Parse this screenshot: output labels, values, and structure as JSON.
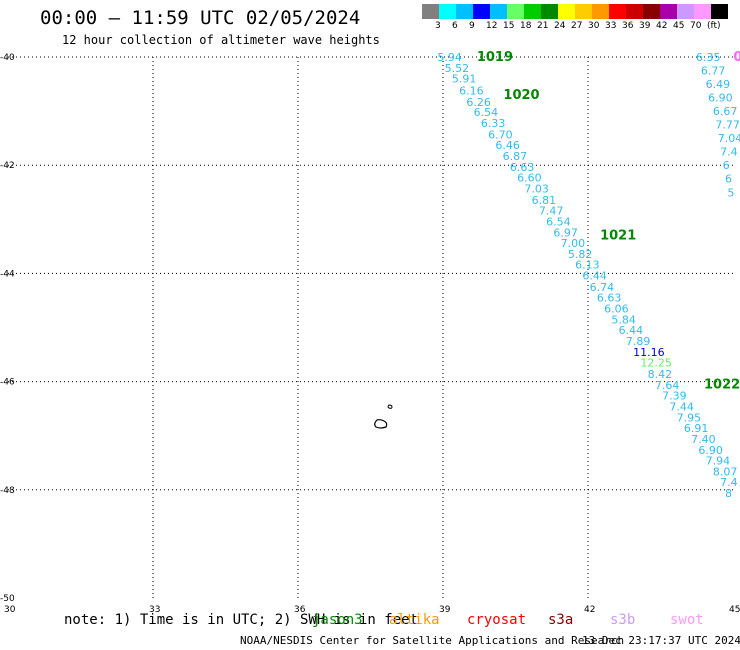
{
  "header": {
    "title": "00:00 – 11:59 UTC 02/05/2024",
    "subtitle": "12 hour collection of altimeter wave heights"
  },
  "color_scale": {
    "swatches": [
      "#808080",
      "#00ffff",
      "#00bfff",
      "#0000ff",
      "#00bfff",
      "#66ff66",
      "#00cc00",
      "#008800",
      "#ffff00",
      "#ffcc00",
      "#ff9900",
      "#ff0000",
      "#cc0000",
      "#880000",
      "#aa00aa",
      "#cc99ff",
      "#ff99ff",
      "#000000"
    ],
    "labels": [
      "3",
      "6",
      "9",
      "12",
      "15",
      "18",
      "21",
      "24",
      "27",
      "30",
      "33",
      "36",
      "39",
      "42",
      "45",
      "70",
      "(ft)"
    ]
  },
  "axes": {
    "y_ticks": [
      "-40",
      "-42",
      "-44",
      "-46",
      "-48",
      "-50"
    ],
    "x_ticks": [
      "30",
      "33",
      "36",
      "39",
      "42",
      "45"
    ],
    "lat_range": [
      -50,
      -40
    ],
    "lon_range": [
      30,
      45
    ]
  },
  "track_a": {
    "color": "#33bbee",
    "points": [
      {
        "lon": 39.05,
        "lat": -40.0,
        "v": "5.94"
      },
      {
        "lon": 39.2,
        "lat": -40.2,
        "v": "5.52"
      },
      {
        "lon": 39.35,
        "lat": -40.4,
        "v": "5.91"
      },
      {
        "lon": 39.5,
        "lat": -40.62,
        "v": "6.16"
      },
      {
        "lon": 39.65,
        "lat": -40.83,
        "v": "6.26"
      },
      {
        "lon": 39.8,
        "lat": -41.02,
        "v": "6.54"
      },
      {
        "lon": 39.95,
        "lat": -41.22,
        "v": "6.33"
      },
      {
        "lon": 40.1,
        "lat": -41.43,
        "v": "6.70"
      },
      {
        "lon": 40.25,
        "lat": -41.63,
        "v": "6.46"
      },
      {
        "lon": 40.4,
        "lat": -41.83,
        "v": "6.87"
      },
      {
        "lon": 40.55,
        "lat": -42.03,
        "v": "6.63"
      },
      {
        "lon": 40.7,
        "lat": -42.23,
        "v": "6.60"
      },
      {
        "lon": 40.85,
        "lat": -42.43,
        "v": "7.03"
      },
      {
        "lon": 41.0,
        "lat": -42.64,
        "v": "6.81"
      },
      {
        "lon": 41.15,
        "lat": -42.84,
        "v": "7.47"
      },
      {
        "lon": 41.3,
        "lat": -43.04,
        "v": "6.54"
      },
      {
        "lon": 41.45,
        "lat": -43.24,
        "v": "6.97"
      },
      {
        "lon": 41.6,
        "lat": -43.44,
        "v": "7.00"
      },
      {
        "lon": 41.75,
        "lat": -43.64,
        "v": "5.82"
      },
      {
        "lon": 41.9,
        "lat": -43.84,
        "v": "6.13"
      },
      {
        "lon": 42.05,
        "lat": -44.04,
        "v": "6.44"
      },
      {
        "lon": 42.2,
        "lat": -44.25,
        "v": "6.74"
      },
      {
        "lon": 42.35,
        "lat": -44.45,
        "v": "6.63"
      },
      {
        "lon": 42.5,
        "lat": -44.65,
        "v": "6.06"
      },
      {
        "lon": 42.65,
        "lat": -44.85,
        "v": "5.84"
      },
      {
        "lon": 42.8,
        "lat": -45.05,
        "v": "6.44"
      },
      {
        "lon": 42.95,
        "lat": -45.25,
        "v": "7.89"
      },
      {
        "lon": 43.1,
        "lat": -45.45,
        "v": "11.16",
        "color": "#0000cc"
      },
      {
        "lon": 43.25,
        "lat": -45.65,
        "v": "12.25",
        "color": "#66ee66"
      },
      {
        "lon": 43.4,
        "lat": -45.86,
        "v": "8.42"
      },
      {
        "lon": 43.55,
        "lat": -46.06,
        "v": "7.64"
      },
      {
        "lon": 43.7,
        "lat": -46.26,
        "v": "7.39"
      },
      {
        "lon": 43.85,
        "lat": -46.46,
        "v": "7.44"
      },
      {
        "lon": 44.0,
        "lat": -46.66,
        "v": "7.95"
      },
      {
        "lon": 44.15,
        "lat": -46.86,
        "v": "6.91"
      },
      {
        "lon": 44.3,
        "lat": -47.06,
        "v": "7.40"
      },
      {
        "lon": 44.45,
        "lat": -47.26,
        "v": "6.90"
      },
      {
        "lon": 44.6,
        "lat": -47.46,
        "v": "7.94"
      },
      {
        "lon": 44.75,
        "lat": -47.66,
        "v": "8.07"
      },
      {
        "lon": 44.9,
        "lat": -47.86,
        "v": "7.4"
      },
      {
        "lon": 45.0,
        "lat": -48.06,
        "v": "8"
      }
    ],
    "markers": [
      {
        "lon": 39.7,
        "lat": -40.0,
        "t": "1019"
      },
      {
        "lon": 40.25,
        "lat": -40.7,
        "t": "1020"
      },
      {
        "lon": 42.25,
        "lat": -43.3,
        "t": "1021"
      },
      {
        "lon": 44.4,
        "lat": -46.05,
        "t": "1022"
      }
    ]
  },
  "track_b": {
    "color": "#33bbee",
    "points": [
      {
        "lon": 44.4,
        "lat": -40.0,
        "v": "6.35"
      },
      {
        "lon": 44.5,
        "lat": -40.25,
        "v": "6.77"
      },
      {
        "lon": 44.6,
        "lat": -40.5,
        "v": "6.49"
      },
      {
        "lon": 44.65,
        "lat": -40.75,
        "v": "6.90"
      },
      {
        "lon": 44.75,
        "lat": -41.0,
        "v": "6.67"
      },
      {
        "lon": 44.8,
        "lat": -41.25,
        "v": "7.77"
      },
      {
        "lon": 44.85,
        "lat": -41.5,
        "v": "7.04"
      },
      {
        "lon": 44.9,
        "lat": -41.75,
        "v": "7.4"
      },
      {
        "lon": 44.95,
        "lat": -42.0,
        "v": "6"
      },
      {
        "lon": 45.0,
        "lat": -42.25,
        "v": "6"
      },
      {
        "lon": 45.05,
        "lat": -42.5,
        "v": "5"
      }
    ],
    "marker": {
      "lon": 45.05,
      "lat": -40.0,
      "t": "0",
      "color": "#ff66ff"
    }
  },
  "footer": {
    "note": "note:  1) Time is in UTC; 2) SWH is in feet",
    "satellites": [
      {
        "name": "jason3",
        "color": "#008800"
      },
      {
        "name": "altika",
        "color": "#ff9900"
      },
      {
        "name": "cryosat",
        "color": "#ff0000"
      },
      {
        "name": "s3a",
        "color": "#880000"
      },
      {
        "name": "s3b",
        "color": "#cc99ff"
      },
      {
        "name": "swot",
        "color": "#ff99ff"
      }
    ],
    "credit": "NOAA/NESDIS Center for Satellite Applications and Research",
    "stamp": "13 Dec 23:17:37 UTC 2024"
  }
}
